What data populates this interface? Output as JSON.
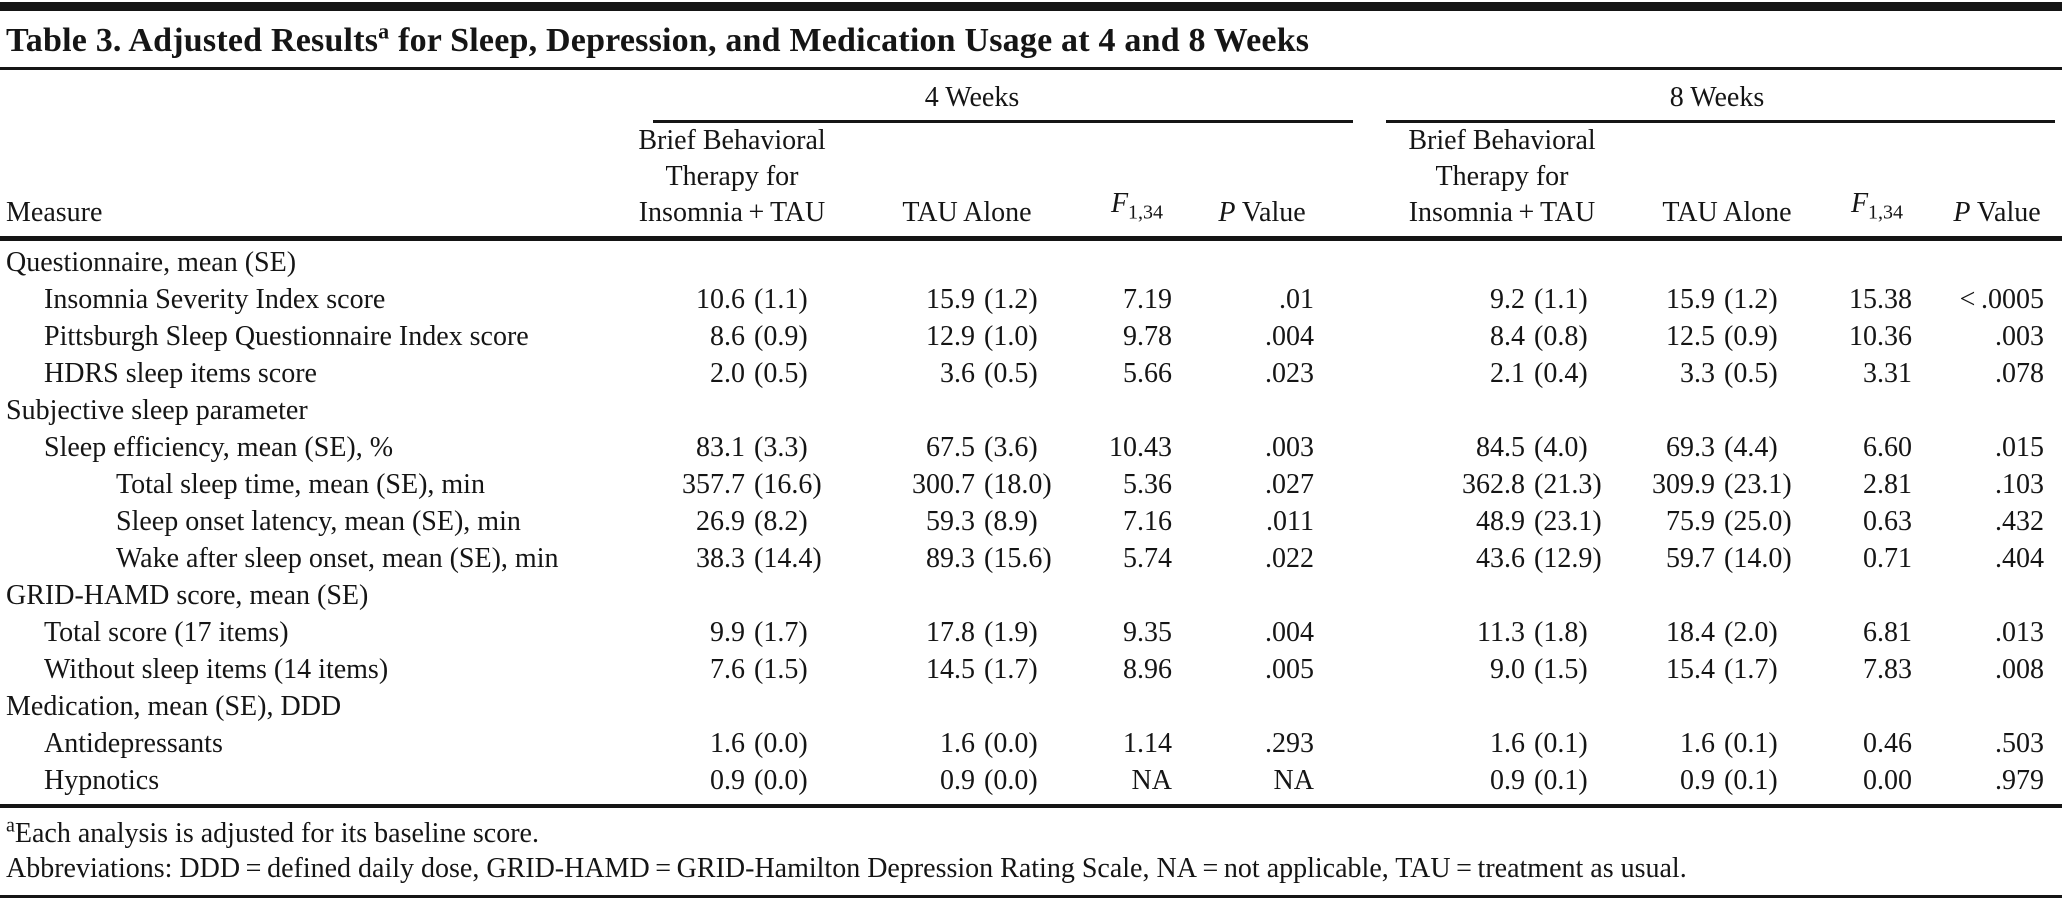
{
  "page": {
    "background": "#ffffff",
    "ink": "#151515",
    "rule_color": "#151515"
  },
  "title": {
    "text_before_marker": "Table 3. Adjusted Results",
    "footnote_marker": "a",
    "text_after_marker": " for Sleep, Depression, and Medication Usage at 4 and 8 Weeks"
  },
  "header": {
    "measure_label": "Measure",
    "groups": [
      {
        "label": "4 Weeks"
      },
      {
        "label": "8 Weeks"
      }
    ],
    "treatment_label": "Brief Behavioral\nTherapy for\nInsomnia + TAU",
    "tau_label": "TAU Alone",
    "f_label": "F",
    "f_subscript": "1,34",
    "p_label_italic": "P",
    "p_label_rest": " Value"
  },
  "rows": [
    {
      "label": "Questionnaire, mean (SE)",
      "indent": 0,
      "section": true
    },
    {
      "label": "Insomnia Severity Index score",
      "indent": 1,
      "values": [
        "10.6 (1.1)",
        "15.9 (1.2)",
        "7.19",
        ".01",
        "9.2 (1.1)",
        "15.9 (1.2)",
        "15.38",
        "< .0005"
      ]
    },
    {
      "label": "Pittsburgh Sleep Questionnaire Index score",
      "indent": 1,
      "values": [
        "8.6 (0.9)",
        "12.9 (1.0)",
        "9.78",
        ".004",
        "8.4 (0.8)",
        "12.5 (0.9)",
        "10.36",
        ".003"
      ]
    },
    {
      "label": "HDRS sleep items score",
      "indent": 1,
      "values": [
        "2.0 (0.5)",
        "3.6 (0.5)",
        "5.66",
        ".023",
        "2.1 (0.4)",
        "3.3 (0.5)",
        "3.31",
        ".078"
      ]
    },
    {
      "label": "Subjective sleep parameter",
      "indent": 0,
      "section": true
    },
    {
      "label": "Sleep efficiency, mean (SE), %",
      "indent": 1,
      "values": [
        "83.1 (3.3)",
        "67.5 (3.6)",
        "10.43",
        ".003",
        "84.5 (4.0)",
        "69.3 (4.4)",
        "6.60",
        ".015"
      ]
    },
    {
      "label": "Total sleep time, mean (SE), min",
      "indent": 2,
      "values": [
        "357.7 (16.6)",
        "300.7 (18.0)",
        "5.36",
        ".027",
        "362.8 (21.3)",
        "309.9 (23.1)",
        "2.81",
        ".103"
      ]
    },
    {
      "label": "Sleep onset latency, mean (SE), min",
      "indent": 2,
      "values": [
        "26.9 (8.2)",
        "59.3 (8.9)",
        "7.16",
        ".011",
        "48.9 (23.1)",
        "75.9 (25.0)",
        "0.63",
        ".432"
      ]
    },
    {
      "label": "Wake after sleep onset, mean (SE), min",
      "indent": 2,
      "values": [
        "38.3 (14.4)",
        "89.3 (15.6)",
        "5.74",
        ".022",
        "43.6 (12.9)",
        "59.7 (14.0)",
        "0.71",
        ".404"
      ]
    },
    {
      "label": "GRID-HAMD score, mean (SE)",
      "indent": 0,
      "section": true
    },
    {
      "label": "Total score (17 items)",
      "indent": 1,
      "values": [
        "9.9 (1.7)",
        "17.8 (1.9)",
        "9.35",
        ".004",
        "11.3 (1.8)",
        "18.4 (2.0)",
        "6.81",
        ".013"
      ]
    },
    {
      "label": "Without sleep items (14 items)",
      "indent": 1,
      "values": [
        "7.6 (1.5)",
        "14.5 (1.7)",
        "8.96",
        ".005",
        "9.0 (1.5)",
        "15.4 (1.7)",
        "7.83",
        ".008"
      ]
    },
    {
      "label": "Medication, mean (SE), DDD",
      "indent": 0,
      "section": true
    },
    {
      "label": "Antidepressants",
      "indent": 1,
      "values": [
        "1.6 (0.0)",
        "1.6 (0.0)",
        "1.14",
        ".293",
        "1.6 (0.1)",
        "1.6 (0.1)",
        "0.46",
        ".503"
      ]
    },
    {
      "label": "Hypnotics",
      "indent": 1,
      "values": [
        "0.9 (0.0)",
        "0.9 (0.0)",
        "NA",
        "NA",
        "0.9 (0.1)",
        "0.9 (0.1)",
        "0.00",
        ".979"
      ]
    }
  ],
  "footnotes": [
    {
      "marker": "a",
      "text": "Each analysis is adjusted for its baseline score."
    },
    {
      "marker": "",
      "text": "Abbreviations: DDD = defined daily dose, GRID-HAMD = GRID-Hamilton Depression Rating Scale, NA = not applicable, TAU = treatment as usual."
    }
  ]
}
